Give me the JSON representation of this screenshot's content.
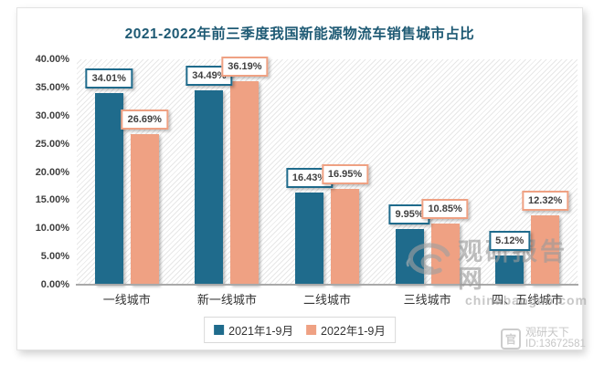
{
  "chart_data": {
    "type": "bar",
    "title": "2021-2022年前三季度我国新能源物流车销售城市占比",
    "categories": [
      "一线城市",
      "新一线城市",
      "二线城市",
      "三线城市",
      "四、五线城市"
    ],
    "series": [
      {
        "name": "2021年1-9月",
        "color": "#1f6b8c",
        "values": [
          34.01,
          34.49,
          16.43,
          9.95,
          5.12
        ]
      },
      {
        "name": "2022年1-9月",
        "color": "#efa183",
        "values": [
          26.69,
          36.19,
          16.95,
          10.85,
          12.32
        ]
      }
    ],
    "ylim": [
      0,
      40
    ],
    "ytick_step": 5,
    "y_tick_labels": [
      "40.00%",
      "35.00%",
      "30.00%",
      "25.00%",
      "20.00%",
      "15.00%",
      "10.00%",
      "5.00%",
      "0.00%"
    ],
    "grid": false,
    "legend_position": "bottom",
    "plot_background": "diagonal-hatch"
  },
  "watermarks": {
    "center": {
      "logo": "spiral-icon",
      "text": "观研报告网",
      "url": "chinabaogao.com"
    },
    "corner": {
      "icon": "seal-icon",
      "text": "观研天下",
      "id": "ID:13672581"
    }
  },
  "colors": {
    "title": "#1e5a74",
    "series_2021": "#1f6b8c",
    "series_2022": "#efa183",
    "axis_text": "#3f3f3f",
    "watermark": "#9a9a9a"
  }
}
